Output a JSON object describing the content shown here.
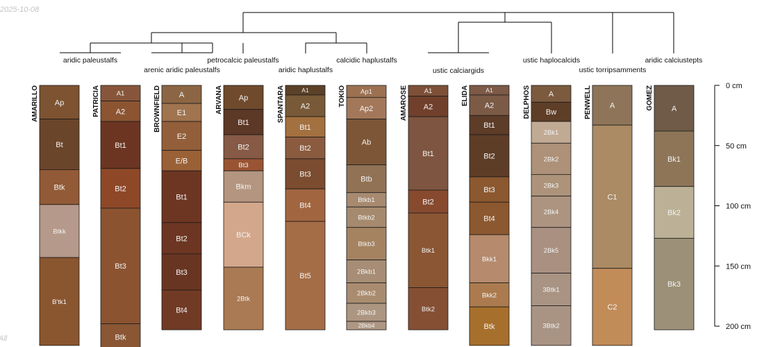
{
  "date_stamp": "2025-10-08",
  "corner_note": "All",
  "chart_data": {
    "type": "soil-profile-sketch",
    "depth_unit": "cm",
    "depth_axis": {
      "ticks": [
        0,
        50,
        100,
        150,
        200
      ],
      "labels": [
        "0 cm",
        "50 cm",
        "100 cm",
        "150 cm",
        "200 cm"
      ]
    },
    "profiles": [
      {
        "name": "AMARILLO",
        "taxon": "aridic paleustalfs",
        "horizons": [
          {
            "name": "Ap",
            "top": 0,
            "bottom": 28,
            "color": "#7d5331"
          },
          {
            "name": "Bt",
            "top": 28,
            "bottom": 70,
            "color": "#6b4529"
          },
          {
            "name": "Btk",
            "top": 70,
            "bottom": 99,
            "color": "#925a36"
          },
          {
            "name": "Btkk",
            "top": 99,
            "bottom": 143,
            "color": "#b5998a"
          },
          {
            "name": "B'tk1",
            "top": 143,
            "bottom": 216,
            "color": "#8a5630"
          }
        ]
      },
      {
        "name": "PATRICIA",
        "taxon": "arenic aridic paleustalfs",
        "horizons": [
          {
            "name": "A1",
            "top": 0,
            "bottom": 13,
            "color": "#87563a"
          },
          {
            "name": "A2",
            "top": 13,
            "bottom": 30,
            "color": "#8c5431"
          },
          {
            "name": "Bt1",
            "top": 30,
            "bottom": 69,
            "color": "#6c3522"
          },
          {
            "name": "Bt2",
            "top": 69,
            "bottom": 102,
            "color": "#8e4828"
          },
          {
            "name": "Bt3",
            "top": 102,
            "bottom": 198,
            "color": "#8b5330"
          },
          {
            "name": "Btk",
            "top": 198,
            "bottom": 220,
            "color": "#8a5634"
          }
        ]
      },
      {
        "name": "BROWNFIELD",
        "taxon": "arenic aridic paleustalfs",
        "horizons": [
          {
            "name": "A",
            "top": 0,
            "bottom": 15,
            "color": "#8c6644"
          },
          {
            "name": "E1",
            "top": 15,
            "bottom": 30,
            "color": "#a0744e"
          },
          {
            "name": "E2",
            "top": 30,
            "bottom": 54,
            "color": "#925f3a"
          },
          {
            "name": "E/B",
            "top": 54,
            "bottom": 71,
            "color": "#9a6036"
          },
          {
            "name": "Bt1",
            "top": 71,
            "bottom": 114,
            "color": "#6d3622"
          },
          {
            "name": "Bt2",
            "top": 114,
            "bottom": 140,
            "color": "#6c3622"
          },
          {
            "name": "Bt3",
            "top": 140,
            "bottom": 170,
            "color": "#693523"
          },
          {
            "name": "Bt4",
            "top": 170,
            "bottom": 203,
            "color": "#713a25"
          }
        ]
      },
      {
        "name": "ARVANA",
        "taxon": "petrocalcic paleustalfs",
        "horizons": [
          {
            "name": "Ap",
            "top": 0,
            "bottom": 20,
            "color": "#6f4a2d"
          },
          {
            "name": "Bt1",
            "top": 20,
            "bottom": 41,
            "color": "#5c3826"
          },
          {
            "name": "Bt2",
            "top": 41,
            "bottom": 61,
            "color": "#865a45"
          },
          {
            "name": "Bt3",
            "top": 61,
            "bottom": 71,
            "color": "#9a5433"
          },
          {
            "name": "Bkm",
            "top": 71,
            "bottom": 97,
            "color": "#b39580"
          },
          {
            "name": "BCk",
            "top": 97,
            "bottom": 151,
            "color": "#d3a78c"
          },
          {
            "name": "2Btk",
            "top": 151,
            "bottom": 203,
            "color": "#a97a53"
          }
        ]
      },
      {
        "name": "SPANTARA",
        "taxon": "aridic haplustalfs",
        "horizons": [
          {
            "name": "A1",
            "top": 0,
            "bottom": 8,
            "color": "#5b4127"
          },
          {
            "name": "A2",
            "top": 8,
            "bottom": 26,
            "color": "#785a38"
          },
          {
            "name": "Bt1",
            "top": 26,
            "bottom": 43,
            "color": "#a3703f"
          },
          {
            "name": "Bt2",
            "top": 43,
            "bottom": 61,
            "color": "#8b5b40"
          },
          {
            "name": "Bt3",
            "top": 61,
            "bottom": 86,
            "color": "#7b4c30"
          },
          {
            "name": "Bt4",
            "top": 86,
            "bottom": 113,
            "color": "#a16640"
          },
          {
            "name": "Bt5",
            "top": 113,
            "bottom": 203,
            "color": "#a56d46"
          }
        ]
      },
      {
        "name": "TOKIO",
        "taxon": "calcidic haplustalfs",
        "horizons": [
          {
            "name": "Ap1",
            "top": 0,
            "bottom": 10,
            "color": "#9c7152"
          },
          {
            "name": "Ap2",
            "top": 10,
            "bottom": 28,
            "color": "#a3785a"
          },
          {
            "name": "Ab",
            "top": 28,
            "bottom": 66,
            "color": "#7c5637"
          },
          {
            "name": "Btb",
            "top": 66,
            "bottom": 89,
            "color": "#917254"
          },
          {
            "name": "Btkb1",
            "top": 89,
            "bottom": 101,
            "color": "#a78a70"
          },
          {
            "name": "Btkb2",
            "top": 101,
            "bottom": 118,
            "color": "#a68a6e"
          },
          {
            "name": "Btkb3",
            "top": 118,
            "bottom": 145,
            "color": "#a58361"
          },
          {
            "name": "2Bkb1",
            "top": 145,
            "bottom": 164,
            "color": "#a78d75"
          },
          {
            "name": "2Bkb2",
            "top": 164,
            "bottom": 181,
            "color": "#a98c70"
          },
          {
            "name": "2Bkb3",
            "top": 181,
            "bottom": 196,
            "color": "#ad9681"
          },
          {
            "name": "2Bkb4",
            "top": 196,
            "bottom": 203,
            "color": "#ad9682"
          }
        ]
      },
      {
        "name": "AMAROSE",
        "taxon": "ustic calciargids",
        "horizons": [
          {
            "name": "A1",
            "top": 0,
            "bottom": 9,
            "color": "#7e5038"
          },
          {
            "name": "A2",
            "top": 9,
            "bottom": 26,
            "color": "#71402c"
          },
          {
            "name": "Bt1",
            "top": 26,
            "bottom": 87,
            "color": "#7e5540"
          },
          {
            "name": "Bt2",
            "top": 87,
            "bottom": 106,
            "color": "#874a2e"
          },
          {
            "name": "Btk1",
            "top": 106,
            "bottom": 168,
            "color": "#8b5634"
          },
          {
            "name": "Btk2",
            "top": 168,
            "bottom": 203,
            "color": "#854f33"
          }
        ]
      },
      {
        "name": "ELIDA",
        "taxon": "ustic haplocalcids",
        "horizons": [
          {
            "name": "A1",
            "top": 0,
            "bottom": 8,
            "color": "#7c5a47"
          },
          {
            "name": "A2",
            "top": 8,
            "bottom": 25,
            "color": "#7b5a46"
          },
          {
            "name": "Bt1",
            "top": 25,
            "bottom": 41,
            "color": "#5d3c28"
          },
          {
            "name": "Bt2",
            "top": 41,
            "bottom": 76,
            "color": "#5e3d27"
          },
          {
            "name": "Bt3",
            "top": 76,
            "bottom": 97,
            "color": "#8b582f"
          },
          {
            "name": "Bt4",
            "top": 97,
            "bottom": 124,
            "color": "#8c582f"
          },
          {
            "name": "Bkk1",
            "top": 124,
            "bottom": 164,
            "color": "#b58a6d"
          },
          {
            "name": "Bkk2",
            "top": 164,
            "bottom": 184,
            "color": "#ab7b4f"
          },
          {
            "name": "Btk",
            "top": 184,
            "bottom": 216,
            "color": "#a76f2c"
          }
        ]
      },
      {
        "name": "DELPHOS",
        "taxon": "ustic haplocalcids",
        "horizons": [
          {
            "name": "A",
            "top": 0,
            "bottom": 14,
            "color": "#7b5a3e"
          },
          {
            "name": "Bw",
            "top": 14,
            "bottom": 30,
            "color": "#5e3e26"
          },
          {
            "name": "2Bk1",
            "top": 30,
            "bottom": 48,
            "color": "#c1aa94"
          },
          {
            "name": "2Bk2",
            "top": 48,
            "bottom": 74,
            "color": "#ad9178"
          },
          {
            "name": "2Bk3",
            "top": 74,
            "bottom": 92,
            "color": "#ad937a"
          },
          {
            "name": "2Bk4",
            "top": 92,
            "bottom": 118,
            "color": "#ac9480"
          },
          {
            "name": "2Bk5",
            "top": 118,
            "bottom": 156,
            "color": "#a99080"
          },
          {
            "name": "3Btk1",
            "top": 156,
            "bottom": 183,
            "color": "#a99484"
          },
          {
            "name": "3Btk2",
            "top": 183,
            "bottom": 216,
            "color": "#a99484"
          }
        ]
      },
      {
        "name": "PENWELL",
        "taxon": "ustic torripsamments",
        "horizons": [
          {
            "name": "A",
            "top": 0,
            "bottom": 33,
            "color": "#8e7559"
          },
          {
            "name": "C1",
            "top": 33,
            "bottom": 152,
            "color": "#aa8b63"
          },
          {
            "name": "C2",
            "top": 152,
            "bottom": 216,
            "color": "#c28c59"
          }
        ]
      },
      {
        "name": "GOMEZ",
        "taxon": "aridic calciustepts",
        "horizons": [
          {
            "name": "A",
            "top": 0,
            "bottom": 38,
            "color": "#6f5b48"
          },
          {
            "name": "Bk1",
            "top": 38,
            "bottom": 84,
            "color": "#8e7558"
          },
          {
            "name": "Bk2",
            "top": 84,
            "bottom": 127,
            "color": "#bcb196"
          },
          {
            "name": "Bk3",
            "top": 127,
            "bottom": 203,
            "color": "#9c9178"
          }
        ]
      }
    ]
  }
}
